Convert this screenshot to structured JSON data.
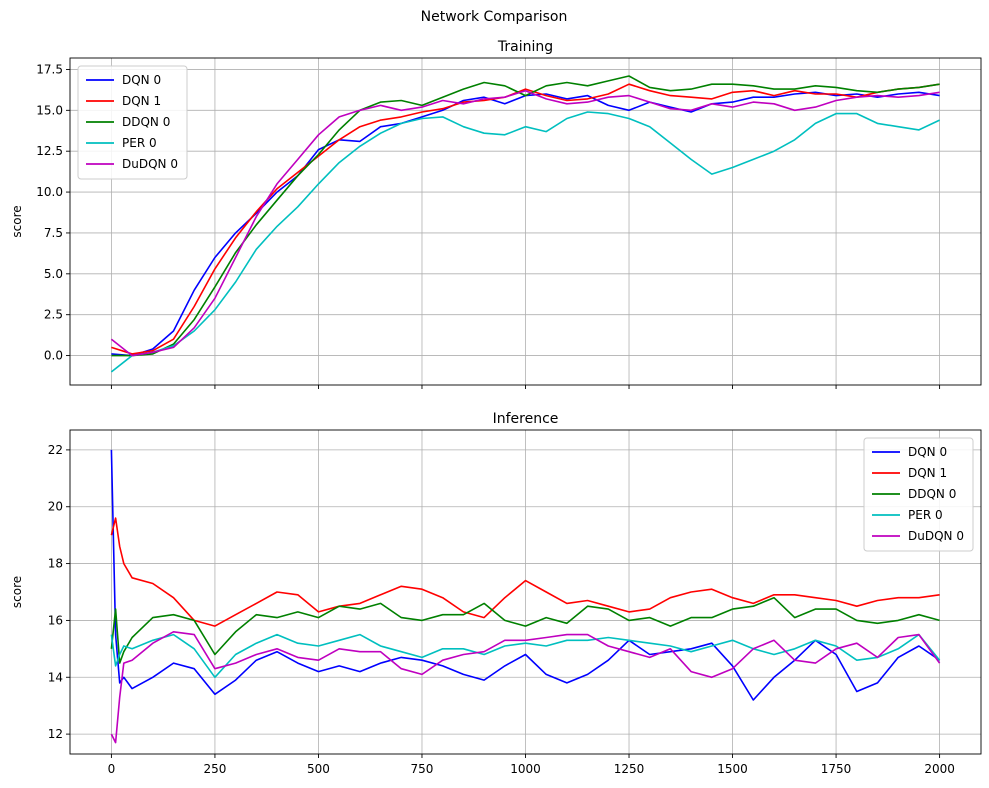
{
  "figure": {
    "suptitle": "Network Comparison"
  },
  "colors": {
    "DQN 0": "#0000ff",
    "DQN 1": "#ff0000",
    "DDQN 0": "#008000",
    "PER 0": "#00bfbf",
    "DuDQN 0": "#bf00bf",
    "grid": "#b0b0b0"
  },
  "chart_data": [
    {
      "type": "line",
      "title": "Training",
      "xlabel": "",
      "ylabel": "score",
      "xlim": [
        -100,
        2100
      ],
      "ylim": [
        -1.8,
        18.2
      ],
      "xticks": [
        0,
        250,
        500,
        750,
        1000,
        1250,
        1500,
        1750,
        2000
      ],
      "show_xtick_labels": false,
      "yticks": [
        0.0,
        2.5,
        5.0,
        7.5,
        10.0,
        12.5,
        15.0,
        17.5
      ],
      "ytick_labels": [
        "0.0",
        "2.5",
        "5.0",
        "7.5",
        "10.0",
        "12.5",
        "15.0",
        "17.5"
      ],
      "grid": true,
      "legend": "top-left",
      "x": [
        0,
        50,
        100,
        150,
        200,
        250,
        300,
        350,
        400,
        450,
        500,
        550,
        600,
        650,
        700,
        750,
        800,
        850,
        900,
        950,
        1000,
        1050,
        1100,
        1150,
        1200,
        1250,
        1300,
        1350,
        1400,
        1450,
        1500,
        1550,
        1600,
        1650,
        1700,
        1750,
        1800,
        1850,
        1900,
        1950,
        2000
      ],
      "series": [
        {
          "name": "DQN 0",
          "values": [
            0.1,
            0.0,
            0.4,
            1.5,
            4.0,
            6.0,
            7.5,
            8.7,
            10.0,
            11.0,
            12.6,
            13.2,
            13.1,
            14.0,
            14.2,
            14.6,
            15.0,
            15.6,
            15.8,
            15.4,
            15.9,
            16.0,
            15.7,
            15.9,
            15.3,
            15.0,
            15.5,
            15.2,
            14.9,
            15.4,
            15.5,
            15.8,
            15.8,
            16.0,
            16.1,
            15.9,
            16.0,
            15.8,
            16.0,
            16.1,
            15.9
          ]
        },
        {
          "name": "DQN 1",
          "values": [
            0.5,
            0.1,
            0.3,
            1.0,
            3.0,
            5.3,
            7.2,
            8.8,
            10.2,
            11.2,
            12.2,
            13.2,
            14.0,
            14.4,
            14.6,
            14.9,
            15.1,
            15.5,
            15.6,
            15.8,
            16.3,
            15.9,
            15.6,
            15.7,
            16.0,
            16.6,
            16.2,
            15.9,
            15.8,
            15.7,
            16.1,
            16.2,
            15.9,
            16.2,
            16.0,
            16.0,
            15.8,
            16.1,
            16.3,
            16.4,
            16.6
          ]
        },
        {
          "name": "DDQN 0",
          "values": [
            0.0,
            0.0,
            0.1,
            0.7,
            2.2,
            4.2,
            6.3,
            8.0,
            9.5,
            11.0,
            12.3,
            13.8,
            15.0,
            15.5,
            15.6,
            15.3,
            15.8,
            16.3,
            16.7,
            16.5,
            15.9,
            16.5,
            16.7,
            16.5,
            16.8,
            17.1,
            16.4,
            16.2,
            16.3,
            16.6,
            16.6,
            16.5,
            16.3,
            16.3,
            16.5,
            16.4,
            16.2,
            16.1,
            16.3,
            16.4,
            16.6
          ]
        },
        {
          "name": "PER 0",
          "values": [
            -1.0,
            0.0,
            0.2,
            0.6,
            1.5,
            2.8,
            4.5,
            6.5,
            7.9,
            9.1,
            10.5,
            11.8,
            12.8,
            13.6,
            14.2,
            14.5,
            14.6,
            14.0,
            13.6,
            13.5,
            14.0,
            13.7,
            14.5,
            14.9,
            14.8,
            14.5,
            14.0,
            13.0,
            12.0,
            11.1,
            11.5,
            12.0,
            12.5,
            13.2,
            14.2,
            14.8,
            14.8,
            14.2,
            14.0,
            13.8,
            14.4
          ]
        },
        {
          "name": "DuDQN 0",
          "values": [
            1.0,
            0.0,
            0.2,
            0.5,
            1.7,
            3.5,
            6.0,
            8.5,
            10.5,
            12.0,
            13.5,
            14.6,
            15.0,
            15.3,
            15.0,
            15.2,
            15.6,
            15.4,
            15.7,
            15.8,
            16.2,
            15.7,
            15.4,
            15.5,
            15.8,
            15.9,
            15.5,
            15.1,
            15.0,
            15.4,
            15.2,
            15.5,
            15.4,
            15.0,
            15.2,
            15.6,
            15.8,
            15.9,
            15.8,
            15.9,
            16.1
          ]
        }
      ]
    },
    {
      "type": "line",
      "title": "Inference",
      "xlabel": "",
      "ylabel": "score",
      "xlim": [
        -100,
        2100
      ],
      "ylim": [
        11.3,
        22.7
      ],
      "xticks": [
        0,
        250,
        500,
        750,
        1000,
        1250,
        1500,
        1750,
        2000
      ],
      "xtick_labels": [
        "0",
        "250",
        "500",
        "750",
        "1000",
        "1250",
        "1500",
        "1750",
        "2000"
      ],
      "show_xtick_labels": true,
      "yticks": [
        12,
        14,
        16,
        18,
        20,
        22
      ],
      "ytick_labels": [
        "12",
        "14",
        "16",
        "18",
        "20",
        "22"
      ],
      "grid": true,
      "legend": "top-right",
      "x": [
        0,
        10,
        20,
        30,
        50,
        100,
        150,
        200,
        250,
        300,
        350,
        400,
        450,
        500,
        550,
        600,
        650,
        700,
        750,
        800,
        850,
        900,
        950,
        1000,
        1050,
        1100,
        1150,
        1200,
        1250,
        1300,
        1350,
        1400,
        1450,
        1500,
        1550,
        1600,
        1650,
        1700,
        1750,
        1800,
        1850,
        1900,
        1950,
        2000
      ],
      "series": [
        {
          "name": "DQN 0",
          "values": [
            22.0,
            15.5,
            13.8,
            14.0,
            13.6,
            14.0,
            14.5,
            14.3,
            13.4,
            13.9,
            14.6,
            14.9,
            14.5,
            14.2,
            14.4,
            14.2,
            14.5,
            14.7,
            14.6,
            14.4,
            14.1,
            13.9,
            14.4,
            14.8,
            14.1,
            13.8,
            14.1,
            14.6,
            15.3,
            14.8,
            14.9,
            15.0,
            15.2,
            14.4,
            13.2,
            14.0,
            14.6,
            15.3,
            14.8,
            13.5,
            13.8,
            14.7,
            15.1,
            14.6
          ]
        },
        {
          "name": "DQN 1",
          "values": [
            19.0,
            19.6,
            18.6,
            18.0,
            17.5,
            17.3,
            16.8,
            16.0,
            15.8,
            16.2,
            16.6,
            17.0,
            16.9,
            16.3,
            16.5,
            16.6,
            16.9,
            17.2,
            17.1,
            16.8,
            16.3,
            16.1,
            16.8,
            17.4,
            17.0,
            16.6,
            16.7,
            16.5,
            16.3,
            16.4,
            16.8,
            17.0,
            17.1,
            16.8,
            16.6,
            16.9,
            16.9,
            16.8,
            16.7,
            16.5,
            16.7,
            16.8,
            16.8,
            16.9
          ]
        },
        {
          "name": "DDQN 0",
          "values": [
            15.0,
            16.4,
            14.5,
            14.9,
            15.4,
            16.1,
            16.2,
            16.0,
            14.8,
            15.6,
            16.2,
            16.1,
            16.3,
            16.1,
            16.5,
            16.4,
            16.6,
            16.1,
            16.0,
            16.2,
            16.2,
            16.6,
            16.0,
            15.8,
            16.1,
            15.9,
            16.5,
            16.4,
            16.0,
            16.1,
            15.8,
            16.1,
            16.1,
            16.4,
            16.5,
            16.8,
            16.1,
            16.4,
            16.4,
            16.0,
            15.9,
            16.0,
            16.2,
            16.0
          ]
        },
        {
          "name": "PER 0",
          "values": [
            15.5,
            14.4,
            14.8,
            15.1,
            15.0,
            15.3,
            15.5,
            15.0,
            14.0,
            14.8,
            15.2,
            15.5,
            15.2,
            15.1,
            15.3,
            15.5,
            15.1,
            14.9,
            14.7,
            15.0,
            15.0,
            14.8,
            15.1,
            15.2,
            15.1,
            15.3,
            15.3,
            15.4,
            15.3,
            15.2,
            15.1,
            14.9,
            15.1,
            15.3,
            15.0,
            14.8,
            15.0,
            15.3,
            15.1,
            14.6,
            14.7,
            15.0,
            15.5,
            14.6
          ]
        },
        {
          "name": "DuDQN 0",
          "values": [
            12.0,
            11.7,
            13.3,
            14.5,
            14.6,
            15.2,
            15.6,
            15.5,
            14.3,
            14.5,
            14.8,
            15.0,
            14.7,
            14.6,
            15.0,
            14.9,
            14.9,
            14.3,
            14.1,
            14.6,
            14.8,
            14.9,
            15.3,
            15.3,
            15.4,
            15.5,
            15.5,
            15.1,
            14.9,
            14.7,
            15.0,
            14.2,
            14.0,
            14.3,
            15.0,
            15.3,
            14.6,
            14.5,
            15.0,
            15.2,
            14.7,
            15.4,
            15.5,
            14.5
          ]
        }
      ]
    }
  ]
}
